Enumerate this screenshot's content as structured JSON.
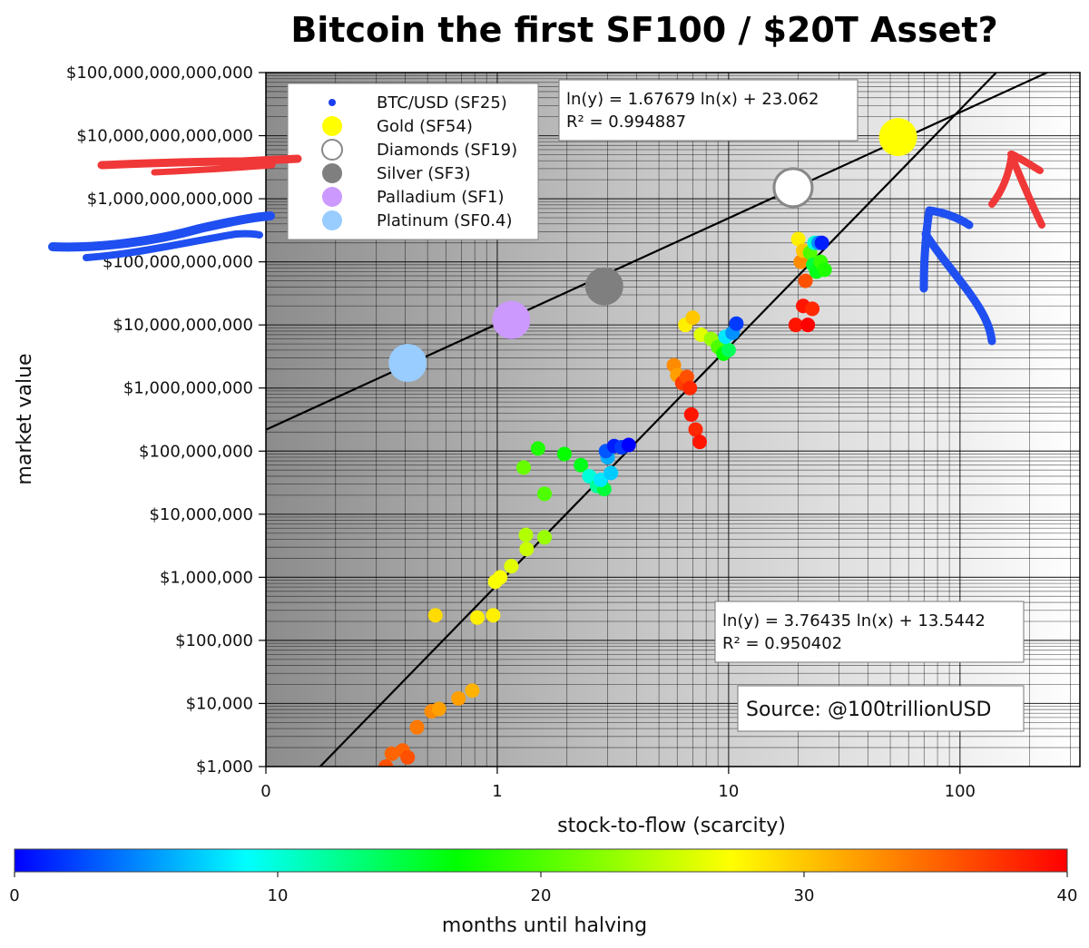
{
  "chart_data": {
    "type": "scatter",
    "title": "Bitcoin the first SF100 / $20T Asset?",
    "xlabel": "stock-to-flow (scarcity)",
    "ylabel": "market value",
    "x_scale": "log",
    "y_scale": "log",
    "xlim": [
      0.1,
      330
    ],
    "ylim": [
      1000,
      100000000000000
    ],
    "x_ticks": [
      {
        "value": 0.1,
        "label": "0"
      },
      {
        "value": 1,
        "label": "1"
      },
      {
        "value": 10,
        "label": "10"
      },
      {
        "value": 100,
        "label": "100"
      }
    ],
    "y_ticks": [
      {
        "value": 1000,
        "label": "$1,000"
      },
      {
        "value": 10000,
        "label": "$10,000"
      },
      {
        "value": 100000,
        "label": "$100,000"
      },
      {
        "value": 1000000,
        "label": "$1,000,000"
      },
      {
        "value": 10000000,
        "label": "$10,000,000"
      },
      {
        "value": 100000000,
        "label": "$100,000,000"
      },
      {
        "value": 1000000000,
        "label": "$1,000,000,000"
      },
      {
        "value": 10000000000,
        "label": "$10,000,000,000"
      },
      {
        "value": 100000000000,
        "label": "$100,000,000,000"
      },
      {
        "value": 1000000000000,
        "label": "$1,000,000,000,000"
      },
      {
        "value": 10000000000000,
        "label": "$10,000,000,000,000"
      },
      {
        "value": 100000000000000,
        "label": "$100,000,000,000,000"
      }
    ],
    "grid": true,
    "legend_position": "top-left",
    "legend": [
      {
        "label": "BTC/USD (SF25)",
        "color": "#1a3ff0",
        "style": "small"
      },
      {
        "label": "Gold (SF54)",
        "color": "#ffff00",
        "style": "filled"
      },
      {
        "label": "Diamonds (SF19)",
        "color": "#ffffff",
        "style": "hollow"
      },
      {
        "label": "Silver (SF3)",
        "color": "#7f7f7f",
        "style": "filled"
      },
      {
        "label": "Palladium (SF1)",
        "color": "#cc99ff",
        "style": "filled"
      },
      {
        "label": "Platinum (SF0.4)",
        "color": "#99ccff",
        "style": "filled"
      }
    ],
    "assets": [
      {
        "name": "Gold",
        "sf": 54,
        "value": 9500000000000,
        "color": "#ffff00",
        "hollow": false
      },
      {
        "name": "Diamonds",
        "sf": 19,
        "value": 1500000000000,
        "color": "#ffffff",
        "hollow": true
      },
      {
        "name": "Silver",
        "sf": 2.9,
        "value": 41000000000,
        "color": "#7f7f7f",
        "hollow": false
      },
      {
        "name": "Palladium",
        "sf": 1.15,
        "value": 12000000000,
        "color": "#cc99ff",
        "hollow": false
      },
      {
        "name": "Platinum",
        "sf": 0.41,
        "value": 2500000000,
        "color": "#99ccff",
        "hollow": false
      }
    ],
    "btc_points": [
      {
        "sf": 0.33,
        "value": 1000,
        "months": 36
      },
      {
        "sf": 0.35,
        "value": 1600,
        "months": 35
      },
      {
        "sf": 0.39,
        "value": 1800,
        "months": 35
      },
      {
        "sf": 0.41,
        "value": 1400,
        "months": 36
      },
      {
        "sf": 0.45,
        "value": 4200,
        "months": 34
      },
      {
        "sf": 0.52,
        "value": 7500,
        "months": 33
      },
      {
        "sf": 0.56,
        "value": 8200,
        "months": 32
      },
      {
        "sf": 0.68,
        "value": 12000,
        "months": 32
      },
      {
        "sf": 0.78,
        "value": 16000,
        "months": 31
      },
      {
        "sf": 0.54,
        "value": 250000,
        "months": 29
      },
      {
        "sf": 0.82,
        "value": 230000,
        "months": 28
      },
      {
        "sf": 0.96,
        "value": 250000,
        "months": 28
      },
      {
        "sf": 0.98,
        "value": 850000,
        "months": 27
      },
      {
        "sf": 1.03,
        "value": 1000000,
        "months": 27
      },
      {
        "sf": 1.15,
        "value": 1500000,
        "months": 26
      },
      {
        "sf": 1.34,
        "value": 2800000,
        "months": 25
      },
      {
        "sf": 1.33,
        "value": 4700000,
        "months": 24
      },
      {
        "sf": 1.6,
        "value": 4300000,
        "months": 23
      },
      {
        "sf": 1.6,
        "value": 21000000,
        "months": 20
      },
      {
        "sf": 1.3,
        "value": 55000000,
        "months": 21
      },
      {
        "sf": 1.5,
        "value": 110000000,
        "months": 18
      },
      {
        "sf": 1.95,
        "value": 90000000,
        "months": 17
      },
      {
        "sf": 2.3,
        "value": 60000000,
        "months": 16
      },
      {
        "sf": 2.5,
        "value": 40000000,
        "months": 10
      },
      {
        "sf": 2.7,
        "value": 28000000,
        "months": 12
      },
      {
        "sf": 2.9,
        "value": 25000000,
        "months": 15
      },
      {
        "sf": 2.8,
        "value": 35000000,
        "months": 8
      },
      {
        "sf": 3.1,
        "value": 45000000,
        "months": 7
      },
      {
        "sf": 3.0,
        "value": 80000000,
        "months": 6
      },
      {
        "sf": 2.95,
        "value": 100000000,
        "months": 3
      },
      {
        "sf": 3.2,
        "value": 120000000,
        "months": 1
      },
      {
        "sf": 3.45,
        "value": 115000000,
        "months": 2
      },
      {
        "sf": 3.7,
        "value": 125000000,
        "months": 0
      },
      {
        "sf": 5.8,
        "value": 2300000000,
        "months": 33
      },
      {
        "sf": 6.0,
        "value": 1600000000,
        "months": 32
      },
      {
        "sf": 6.3,
        "value": 1200000000,
        "months": 37
      },
      {
        "sf": 6.6,
        "value": 1500000000,
        "months": 36
      },
      {
        "sf": 6.8,
        "value": 1000000000,
        "months": 38
      },
      {
        "sf": 6.9,
        "value": 380000000,
        "months": 39
      },
      {
        "sf": 7.2,
        "value": 220000000,
        "months": 38
      },
      {
        "sf": 7.5,
        "value": 140000000,
        "months": 39
      },
      {
        "sf": 6.5,
        "value": 10000000000,
        "months": 28
      },
      {
        "sf": 7.0,
        "value": 13000000000,
        "months": 30
      },
      {
        "sf": 7.6,
        "value": 7000000000,
        "months": 26
      },
      {
        "sf": 8.4,
        "value": 6000000000,
        "months": 23
      },
      {
        "sf": 9.0,
        "value": 4500000000,
        "months": 20
      },
      {
        "sf": 9.5,
        "value": 3500000000,
        "months": 17
      },
      {
        "sf": 10.0,
        "value": 4000000000,
        "months": 14
      },
      {
        "sf": 9.7,
        "value": 6500000000,
        "months": 8
      },
      {
        "sf": 10.4,
        "value": 7500000000,
        "months": 5
      },
      {
        "sf": 10.8,
        "value": 10500000000,
        "months": 2
      },
      {
        "sf": 19.5,
        "value": 10000000000,
        "months": 39
      },
      {
        "sf": 21.0,
        "value": 20000000000,
        "months": 39
      },
      {
        "sf": 22.0,
        "value": 10000000000,
        "months": 40
      },
      {
        "sf": 23.0,
        "value": 18000000000,
        "months": 38
      },
      {
        "sf": 21.5,
        "value": 50000000000,
        "months": 36
      },
      {
        "sf": 20.5,
        "value": 100000000000,
        "months": 33
      },
      {
        "sf": 20.0,
        "value": 230000000000,
        "months": 28
      },
      {
        "sf": 21.0,
        "value": 150000000000,
        "months": 30
      },
      {
        "sf": 22.5,
        "value": 140000000000,
        "months": 20
      },
      {
        "sf": 23.2,
        "value": 90000000000,
        "months": 15
      },
      {
        "sf": 24.0,
        "value": 70000000000,
        "months": 16
      },
      {
        "sf": 25.0,
        "value": 100000000000,
        "months": 19
      },
      {
        "sf": 26.0,
        "value": 75000000000,
        "months": 18
      },
      {
        "sf": 23.5,
        "value": 200000000000,
        "months": 10
      },
      {
        "sf": 24.5,
        "value": 200000000000,
        "months": 5
      },
      {
        "sf": 25.3,
        "value": 200000000000,
        "months": 1
      }
    ],
    "fits": [
      {
        "label": "ln(y) = 1.67679 ln(x) + 23.062",
        "r2_label": "R² = 0.994887",
        "slope": 1.67679,
        "intercept": 23.062
      },
      {
        "label": "ln(y) = 3.76435 ln(x) + 13.5442",
        "r2_label": "R² = 0.950402",
        "slope": 3.76435,
        "intercept": 13.5442
      }
    ],
    "source": "Source: @100trillionUSD",
    "colorbar": {
      "label": "months until halving",
      "min": 0,
      "max": 40,
      "ticks": [
        0,
        10,
        20,
        30,
        40
      ],
      "colors": [
        "#0000ff",
        "#00ffff",
        "#00ff00",
        "#ffff00",
        "#ff0000"
      ]
    }
  }
}
